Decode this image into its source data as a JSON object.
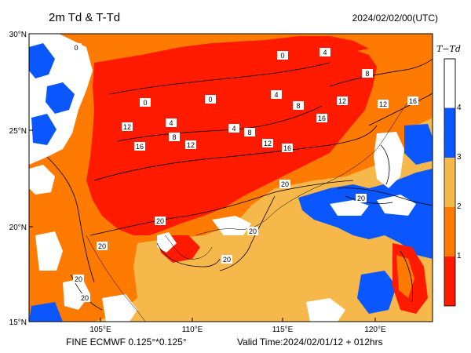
{
  "header": {
    "title": "2m Td & T-Td",
    "timestamp": "2024/02/02/00(UTC)"
  },
  "footer": {
    "model": "FINE ECMWF 0.125°*0.125°",
    "valid": "Valid Time:2024/02/01/12 + 012hrs"
  },
  "axes": {
    "lat_labels": [
      "30°N",
      "25°N",
      "20°N",
      "15°N"
    ],
    "lon_labels": [
      "105°E",
      "110°E",
      "115°E",
      "120°E"
    ]
  },
  "colorbar": {
    "title": "T−Td",
    "ticks": [
      "1",
      "2",
      "3",
      "4"
    ],
    "colors": {
      "lt1": "#ff1a00",
      "c1_2": "#ff7a00",
      "c2_3": "#f6b84a",
      "c3_4": "#0a56ff",
      "gt4": "#ffffff"
    }
  },
  "contour_labels": [
    "0",
    "4",
    "8",
    "12",
    "16",
    "20"
  ],
  "map_colors": {
    "ocean_blue": "#0a56ff",
    "red": "#ff1a00",
    "orange": "#ff7a00",
    "light_orange": "#f6b84a",
    "white": "#ffffff",
    "contour": "#000000"
  }
}
